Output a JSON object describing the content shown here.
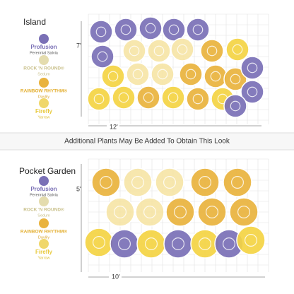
{
  "sections": [
    {
      "title": "Island",
      "legend": [
        {
          "name": "Profusion",
          "subtitle": "Perennial Salvia"
        },
        {
          "name": "ROCK 'N ROUND®",
          "subtitle": "Sedum"
        },
        {
          "name": "RAINBOW RHYTHM®",
          "subtitle": "Daylily"
        },
        {
          "name": "Firefly",
          "subtitle": "Yarrow"
        }
      ],
      "depth": "7'",
      "width": "12'"
    },
    {
      "title": "Pocket Garden",
      "legend": [
        {
          "name": "Profusion",
          "subtitle": "Perennial Salvia"
        },
        {
          "name": "ROCK 'N ROUND®",
          "subtitle": "Sedum"
        },
        {
          "name": "RAINBOW RHYTHM®",
          "subtitle": "Daylily"
        },
        {
          "name": "Firefly",
          "subtitle": "Yarrow"
        }
      ],
      "depth": "5'",
      "width": "10'"
    }
  ],
  "caption": "Additional Plants May Be Added To Obtain This Look"
}
